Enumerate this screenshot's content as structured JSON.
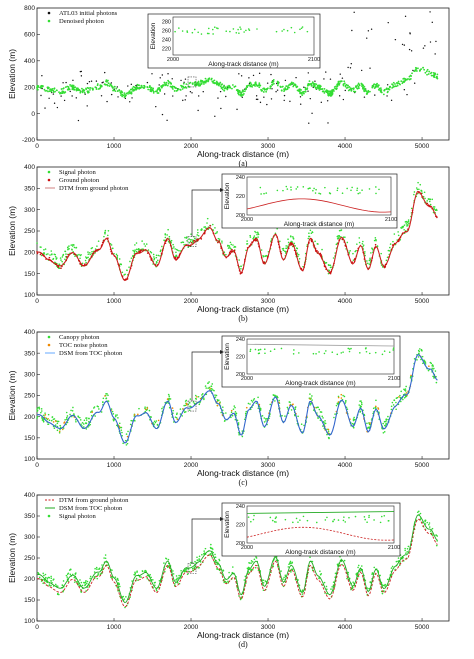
{
  "chart_data": [
    {
      "type": "scatter",
      "panel_label": "(a)",
      "xlabel": "Along-track distance (m)",
      "ylabel": "Elevation (m)",
      "xlim": [
        0,
        5350
      ],
      "ylim": [
        -200,
        800
      ],
      "xticks": [
        0,
        1000,
        2000,
        3000,
        4000,
        5000
      ],
      "yticks": [
        -200,
        0,
        200,
        400,
        600,
        800
      ],
      "legend": "top-left",
      "series": [
        {
          "name": "ATL03 initial photons",
          "color": "#111111",
          "marker": "dot"
        },
        {
          "name": "Denoised photon",
          "color": "#33dd33",
          "marker": "dot"
        }
      ],
      "inset": {
        "xlabel": "Along-track distance (m)",
        "ylabel": "Elevation",
        "xlim": [
          2000,
          2100
        ],
        "ylim": [
          205,
          290
        ],
        "xticks": [
          2000,
          2100
        ],
        "yticks": [
          220,
          240,
          260,
          280
        ]
      }
    },
    {
      "type": "line",
      "panel_label": "(b)",
      "xlabel": "Along-track distance (m)",
      "ylabel": "Elevation (m)",
      "xlim": [
        0,
        5350
      ],
      "ylim": [
        100,
        400
      ],
      "xticks": [
        0,
        1000,
        2000,
        3000,
        4000,
        5000
      ],
      "yticks": [
        100,
        150,
        200,
        250,
        300,
        350,
        400
      ],
      "legend": "top-left",
      "series": [
        {
          "name": "Signal photon",
          "color": "#33dd33",
          "marker": "dot"
        },
        {
          "name": "Ground photon",
          "color": "#cc1111",
          "marker": "dot"
        },
        {
          "name": "DTM from ground photon",
          "color": "#d08080",
          "marker": "line"
        }
      ],
      "inset": {
        "xlabel": "Along-track distance (m)",
        "ylabel": "Elevation",
        "xlim": [
          2000,
          2100
        ],
        "ylim": [
          200,
          240
        ],
        "xticks": [
          2000,
          2100
        ],
        "yticks": [
          200,
          220,
          240
        ]
      }
    },
    {
      "type": "line",
      "panel_label": "(c)",
      "xlabel": "Along-track distance (m)",
      "ylabel": "Elevation (m)",
      "xlim": [
        0,
        5350
      ],
      "ylim": [
        100,
        400
      ],
      "xticks": [
        0,
        1000,
        2000,
        3000,
        4000,
        5000
      ],
      "yticks": [
        100,
        150,
        200,
        250,
        300,
        350,
        400
      ],
      "legend": "top-left",
      "series": [
        {
          "name": "Canopy photon",
          "color": "#33dd33",
          "marker": "dot"
        },
        {
          "name": "TOC noise photon",
          "color": "#ee8800",
          "marker": "dot"
        },
        {
          "name": "DSM from TOC photon",
          "color": "#66aaff",
          "marker": "line"
        }
      ],
      "inset": {
        "xlabel": "Along-track distance (m)",
        "ylabel": "Elevation",
        "xlim": [
          2000,
          2100
        ],
        "ylim": [
          200,
          240
        ],
        "xticks": [
          2000,
          2100
        ],
        "yticks": [
          200,
          220,
          240
        ]
      }
    },
    {
      "type": "line",
      "panel_label": "(d)",
      "xlabel": "Along-track distance (m)",
      "ylabel": "Elevation (m)",
      "xlim": [
        0,
        5350
      ],
      "ylim": [
        100,
        400
      ],
      "xticks": [
        0,
        1000,
        2000,
        3000,
        4000,
        5000
      ],
      "yticks": [
        100,
        150,
        200,
        250,
        300,
        350,
        400
      ],
      "legend": "top-left",
      "series": [
        {
          "name": "DTM from ground photon",
          "color": "#cc2222",
          "marker": "dashed-line"
        },
        {
          "name": "DSM from TOC photon",
          "color": "#22aa22",
          "marker": "line"
        },
        {
          "name": "Signal photon",
          "color": "#33dd33",
          "marker": "dot"
        }
      ],
      "inset": {
        "xlabel": "Along-track distance (m)",
        "ylabel": "Elevation",
        "xlim": [
          2000,
          2100
        ],
        "ylim": [
          200,
          240
        ],
        "xticks": [
          2000,
          2100
        ],
        "yticks": [
          200,
          220,
          240
        ]
      }
    }
  ],
  "profile_knots": {
    "x": [
      0,
      150,
      300,
      450,
      600,
      800,
      900,
      1000,
      1150,
      1300,
      1400,
      1550,
      1700,
      1800,
      1950,
      2100,
      2250,
      2350,
      2450,
      2550,
      2650,
      2750,
      2850,
      2950,
      3100,
      3200,
      3300,
      3450,
      3550,
      3650,
      3800,
      3950,
      4100,
      4200,
      4300,
      4400,
      4500,
      4650,
      4800,
      4950,
      5100,
      5200
    ],
    "y": [
      200,
      185,
      165,
      200,
      170,
      205,
      235,
      190,
      135,
      200,
      205,
      170,
      230,
      185,
      215,
      230,
      260,
      225,
      190,
      205,
      150,
      215,
      230,
      175,
      240,
      185,
      220,
      160,
      230,
      200,
      150,
      235,
      175,
      215,
      160,
      215,
      165,
      220,
      250,
      340,
      310,
      280
    ]
  }
}
